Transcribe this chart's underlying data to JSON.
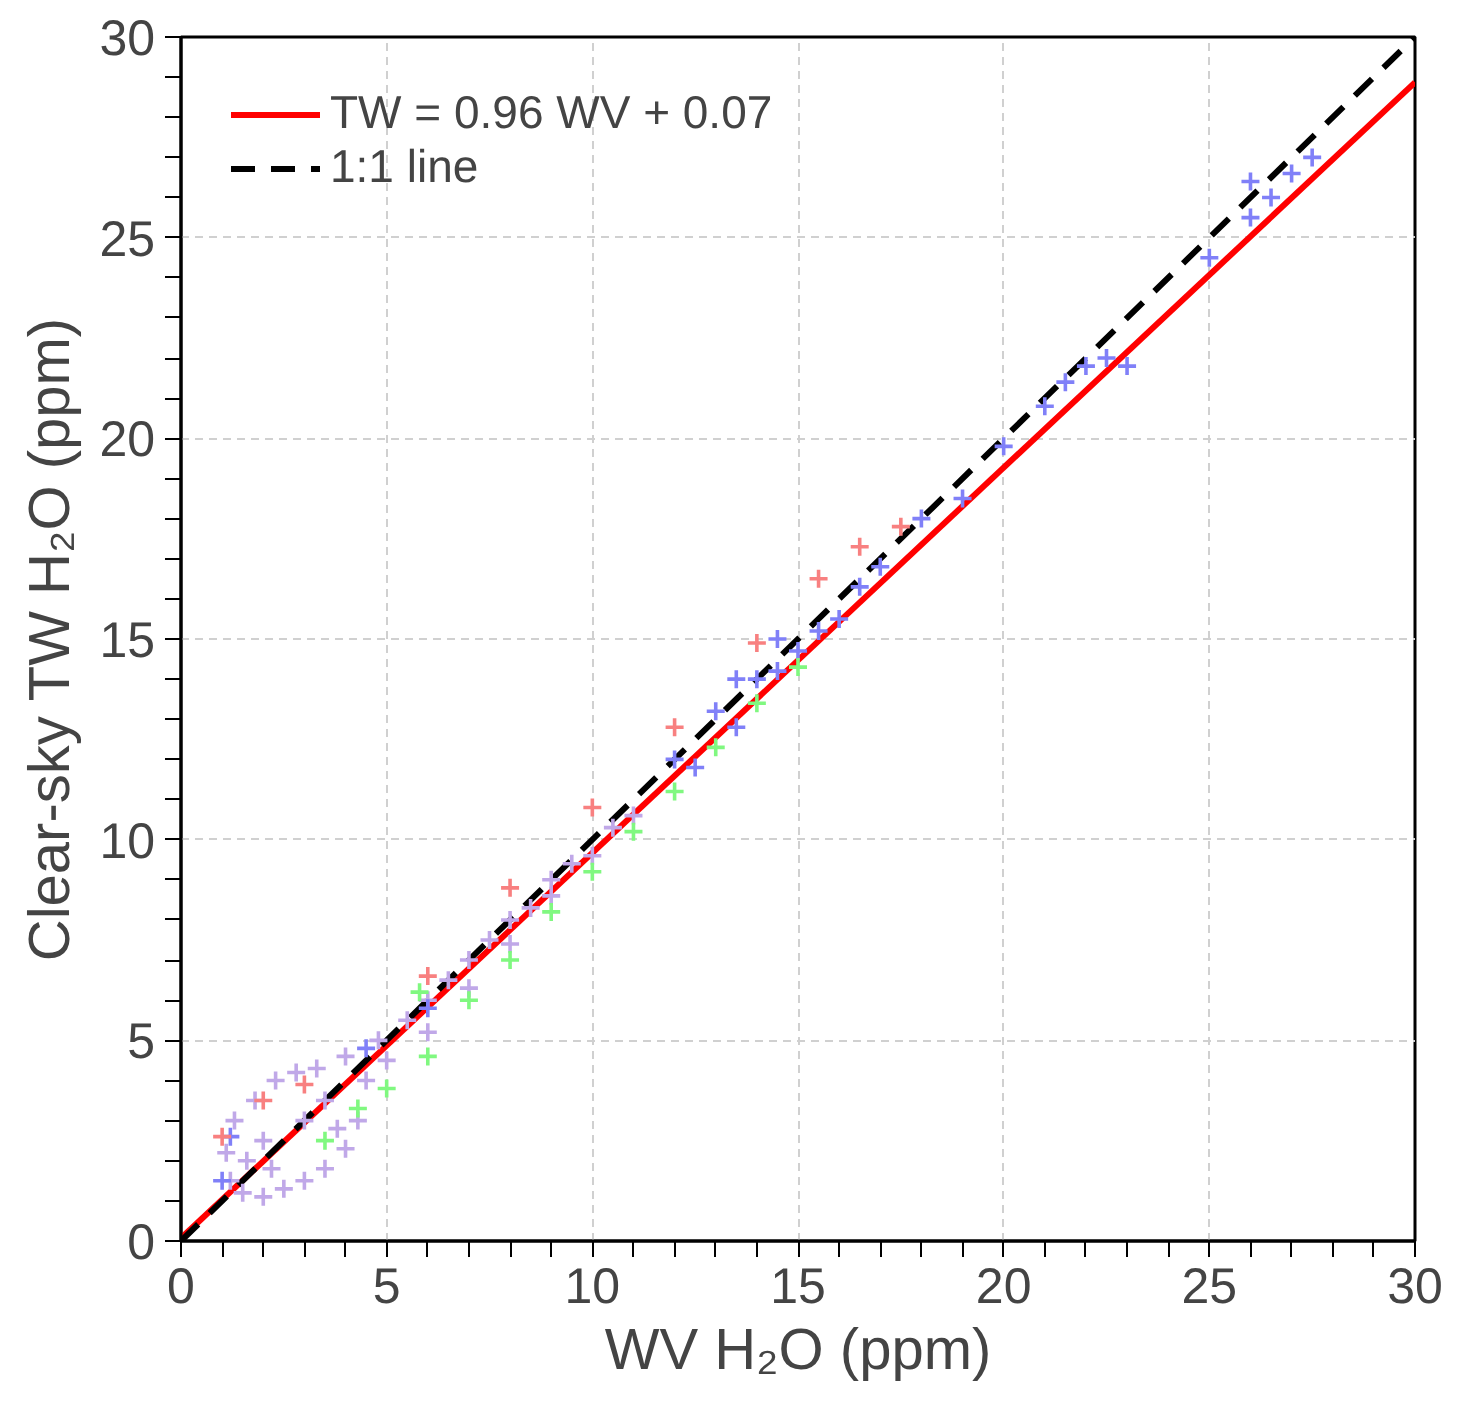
{
  "chart_data": {
    "type": "scatter",
    "xlabel": "WV H₂O (ppm)",
    "ylabel": "Clear-sky TW H₂O (ppm)",
    "xlim": [
      0,
      30
    ],
    "ylim": [
      0,
      30
    ],
    "xticks": [
      0,
      {
        "value": 1,
        "label": null
      },
      {
        "value": 2,
        "label": null
      },
      {
        "value": 3,
        "label": null
      },
      {
        "value": 4,
        "label": null
      },
      5,
      {
        "value": 6,
        "label": null
      },
      {
        "value": 7,
        "label": null
      },
      {
        "value": 8,
        "label": null
      },
      {
        "value": 9,
        "label": null
      },
      10,
      {
        "value": 11,
        "label": null
      },
      {
        "value": 12,
        "label": null
      },
      {
        "value": 13,
        "label": null
      },
      {
        "value": 14,
        "label": null
      },
      15,
      {
        "value": 16,
        "label": null
      },
      {
        "value": 17,
        "label": null
      },
      {
        "value": 18,
        "label": null
      },
      {
        "value": 19,
        "label": null
      },
      20,
      {
        "value": 21,
        "label": null
      },
      {
        "value": 22,
        "label": null
      },
      {
        "value": 23,
        "label": null
      },
      {
        "value": 24,
        "label": null
      },
      25,
      {
        "value": 26,
        "label": null
      },
      {
        "value": 27,
        "label": null
      },
      {
        "value": 28,
        "label": null
      },
      {
        "value": 29,
        "label": null
      },
      30
    ],
    "yticks": [
      0,
      {
        "value": 1,
        "label": null
      },
      {
        "value": 2,
        "label": null
      },
      {
        "value": 3,
        "label": null
      },
      {
        "value": 4,
        "label": null
      },
      5,
      {
        "value": 6,
        "label": null
      },
      {
        "value": 7,
        "label": null
      },
      {
        "value": 8,
        "label": null
      },
      {
        "value": 9,
        "label": null
      },
      10,
      {
        "value": 11,
        "label": null
      },
      {
        "value": 12,
        "label": null
      },
      {
        "value": 13,
        "label": null
      },
      {
        "value": 14,
        "label": null
      },
      15,
      {
        "value": 16,
        "label": null
      },
      {
        "value": 17,
        "label": null
      },
      {
        "value": 18,
        "label": null
      },
      {
        "value": 19,
        "label": null
      },
      20,
      {
        "value": 21,
        "label": null
      },
      {
        "value": 22,
        "label": null
      },
      {
        "value": 23,
        "label": null
      },
      {
        "value": 24,
        "label": null
      },
      25,
      {
        "value": 26,
        "label": null
      },
      {
        "value": 27,
        "label": null
      },
      {
        "value": 28,
        "label": null
      },
      {
        "value": 29,
        "label": null
      },
      30
    ],
    "grid": true,
    "legend": "top left",
    "marker": "cross",
    "series": [
      {
        "color": "#c0a8e8",
        "x": [
          1.2,
          1.5,
          2,
          2.5,
          3,
          3.5,
          4,
          4.3,
          4.5,
          1.1,
          1.3,
          1.8,
          2.3,
          2.8,
          3.3,
          4,
          2,
          3,
          3.5,
          5,
          5.5,
          6,
          6.5,
          7,
          7.5,
          8,
          8.5,
          9,
          9.5,
          10,
          10.5,
          11,
          1.6,
          2.2,
          4.8,
          6,
          7,
          8,
          9,
          3.8
        ],
        "values": [
          1.5,
          1.2,
          1.1,
          1.3,
          1.5,
          1.8,
          2.3,
          3,
          4,
          2.2,
          3,
          3.5,
          4,
          4.2,
          4.3,
          4.6,
          2.5,
          3,
          3.5,
          4.5,
          5.5,
          5.2,
          6.5,
          6.3,
          7.5,
          7.4,
          8.3,
          8.6,
          9.4,
          9.6,
          10.3,
          10.6,
          2,
          1.8,
          5,
          6,
          7,
          8,
          9,
          2.8
        ]
      },
      {
        "color": "#8080f8",
        "x": [
          1,
          1.2,
          4.5,
          6,
          12,
          12.5,
          13,
          13.5,
          14,
          14.5,
          15,
          15.5,
          16,
          16.5,
          17,
          18,
          19,
          20,
          21,
          21.5,
          22,
          22.5,
          23,
          25,
          26,
          26.5,
          27,
          26,
          27.5,
          13.5,
          14.5
        ],
        "values": [
          1.5,
          2.6,
          4.8,
          5.8,
          12,
          11.8,
          13.2,
          12.8,
          14,
          14.2,
          14.7,
          15.2,
          15.5,
          16.3,
          16.8,
          18,
          18.5,
          19.8,
          20.8,
          21.4,
          21.8,
          22,
          21.8,
          24.5,
          25.5,
          26,
          26.6,
          26.4,
          27,
          14,
          15
        ]
      },
      {
        "color": "#80f880",
        "x": [
          3.5,
          4.3,
          5,
          6,
          7,
          8,
          9,
          10,
          11,
          12,
          13,
          14,
          15,
          5.8
        ],
        "values": [
          2.5,
          3.3,
          3.8,
          4.6,
          6,
          7,
          8.2,
          9.2,
          10.2,
          11.2,
          12.3,
          13.4,
          14.3,
          6.2
        ]
      },
      {
        "color": "#f88080",
        "x": [
          1,
          2,
          3,
          6,
          8,
          10,
          12,
          14,
          15.5,
          16.5,
          17.5
        ],
        "values": [
          2.6,
          3.5,
          3.9,
          6.6,
          8.8,
          10.8,
          12.8,
          14.9,
          16.5,
          17.3,
          17.8
        ]
      },
      {
        "type": "line",
        "name": "TW = 0.96 WV + 0.07",
        "color": "#ff0000",
        "line_style": "solid",
        "marker": "none",
        "x": [
          0,
          30
        ],
        "values": [
          0.07,
          28.87
        ]
      },
      {
        "type": "line",
        "name": "1:1 line",
        "color": "#000000",
        "line_style": "dashed",
        "marker": "none",
        "x": [
          0,
          30
        ],
        "values": [
          0,
          30
        ]
      }
    ]
  }
}
